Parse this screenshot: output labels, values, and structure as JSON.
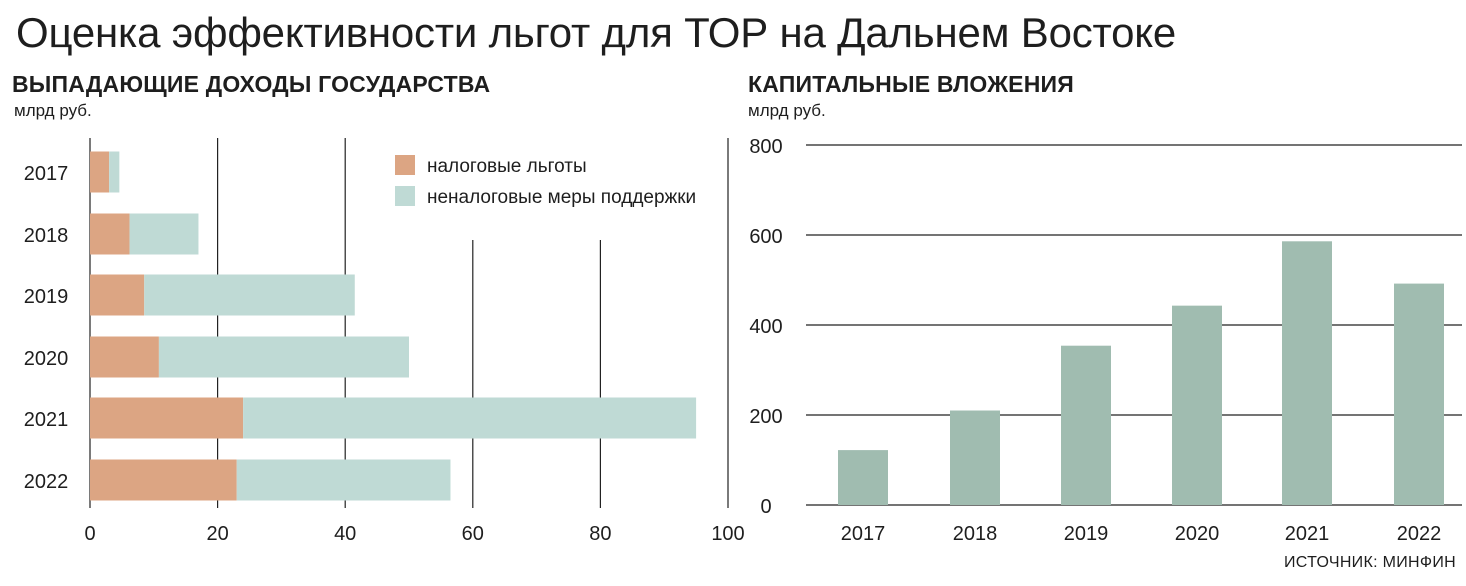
{
  "title": "Оценка эффективности льгот для ТОР на Дальнем Востоке",
  "source": "ИСТОЧНИК: МИНФИН",
  "colors": {
    "tax_benefits": "#dca583",
    "non_tax_support": "#bfdad5",
    "capex": "#a0bcb0",
    "grid": "#222222",
    "text": "#1e1e1e"
  },
  "chart_data": [
    {
      "type": "bar",
      "orientation": "horizontal",
      "stacked": true,
      "title": "ВЫПАДАЮЩИЕ ДОХОДЫ ГОСУДАРСТВА",
      "unit": "млрд руб.",
      "categories": [
        "2017",
        "2018",
        "2019",
        "2020",
        "2021",
        "2022"
      ],
      "series": [
        {
          "name": "налоговые льготы",
          "values": [
            3,
            6.2,
            8.5,
            10.8,
            24,
            23
          ]
        },
        {
          "name": "неналоговые меры поддержки",
          "values": [
            1.6,
            10.8,
            33,
            39.2,
            71,
            33.5
          ]
        }
      ],
      "xlim": [
        0,
        100
      ],
      "xticks": [
        0,
        20,
        40,
        60,
        80,
        100
      ],
      "grid": true,
      "legend": "top-right"
    },
    {
      "type": "bar",
      "title": "КАПИТАЛЬНЫЕ ВЛОЖЕНИЯ",
      "unit": "млрд руб.",
      "categories": [
        "2017",
        "2018",
        "2019",
        "2020",
        "2021",
        "2022"
      ],
      "values": [
        122,
        210,
        354,
        443,
        586,
        492
      ],
      "ylim": [
        0,
        800
      ],
      "yticks": [
        0,
        200,
        400,
        600,
        800
      ],
      "grid": true
    }
  ]
}
